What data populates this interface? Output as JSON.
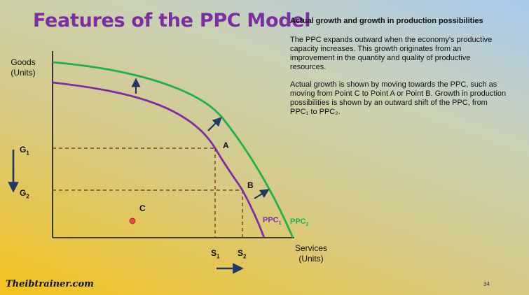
{
  "title": "Features of the PPC Model",
  "side": {
    "heading": "Actual growth and growth in production possibilities",
    "p1": "The PPC expands outward when the economy's productive capacity increases. This growth originates from an improvement in the quantity and quality of productive resources.",
    "p2": "Actual growth is shown by moving towards the PPC, such as moving from Point C to Point A or Point B. Growth in production possibilities is shown by an outward shift of the PPC, from PPC₁ to PPC₂."
  },
  "axes": {
    "y_label_1": "Goods",
    "y_label_2": "(Units)",
    "x_label_1": "Services",
    "x_label_2": "(Units)"
  },
  "points": {
    "a": "A",
    "b": "B",
    "c": "C"
  },
  "ticks": {
    "g1": "G",
    "g2": "G",
    "s1": "S",
    "s2": "S",
    "sub1": "1",
    "sub2": "2"
  },
  "curves": {
    "ppc1": "PPC",
    "ppc2": "PPC",
    "sub1": "1",
    "sub2": "2"
  },
  "colors": {
    "ppc1": "#7b2fa0",
    "ppc2": "#22b04c",
    "arrow": "#1f3864",
    "point_c": "#e84a4a"
  },
  "footer": {
    "logo": "Theibtrainer.com",
    "page": "34"
  }
}
